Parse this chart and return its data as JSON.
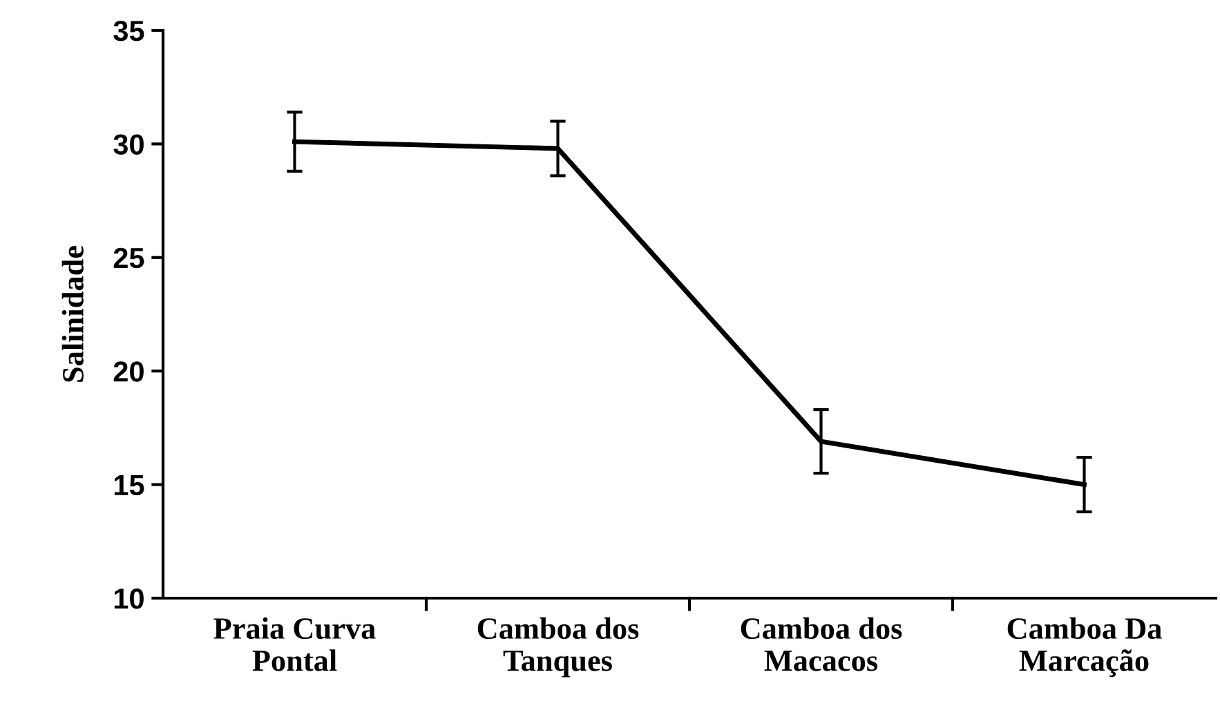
{
  "chart_data": {
    "type": "line",
    "ylabel": "Salinidade",
    "categories": [
      "Praia Curva\nPontal",
      "Camboa dos\nTanques",
      "Camboa dos\nMacacos",
      "Camboa Da\nMarcação"
    ],
    "series": [
      {
        "color": "#000000",
        "values": [
          30.1,
          29.8,
          16.9,
          15.0
        ],
        "errors": [
          1.3,
          1.2,
          1.4,
          1.2
        ]
      }
    ],
    "ylim": [
      10,
      35
    ],
    "yticks": [
      10,
      15,
      20,
      25,
      30,
      35
    ],
    "grid": false,
    "legend": false,
    "marker": "none",
    "line_style": "solid"
  }
}
